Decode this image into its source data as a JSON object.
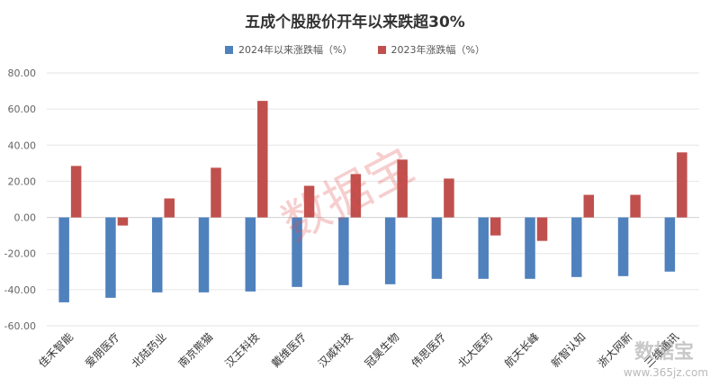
{
  "chart_data": {
    "type": "bar",
    "title": "五成个股股价开年以来跌超30%",
    "categories": [
      "佳禾智能",
      "爱朋医疗",
      "北陆药业",
      "南京熊猫",
      "汉王科技",
      "戴维医疗",
      "汉威科技",
      "冠昊生物",
      "伟思医疗",
      "北大医药",
      "航天长峰",
      "新智认知",
      "浙大网新",
      "三维通讯"
    ],
    "series": [
      {
        "name": "2024年以来涨跌幅（%）",
        "color": "#4f81bd",
        "values": [
          -47.0,
          -44.5,
          -41.5,
          -41.5,
          -41.0,
          -38.5,
          -37.5,
          -37.0,
          -34.0,
          -34.0,
          -34.0,
          -33.0,
          -32.5,
          -30.0
        ]
      },
      {
        "name": "2023年涨跌幅（%）",
        "color": "#c0504d",
        "values": [
          28.5,
          -4.5,
          10.5,
          27.5,
          64.5,
          17.5,
          24.0,
          32.0,
          21.5,
          -10.0,
          -13.0,
          12.5,
          12.5,
          36.0
        ]
      }
    ],
    "yticks": [
      "80.00",
      "60.00",
      "40.00",
      "20.00",
      "0.00",
      "-20.00",
      "-40.00",
      "-60.00"
    ],
    "ylim": [
      -60,
      80
    ],
    "grid": true,
    "legend_position": "top-center"
  },
  "watermark": {
    "main": "数据宝",
    "corner": "数据宝",
    "corner_url": "www.365jz.com"
  }
}
